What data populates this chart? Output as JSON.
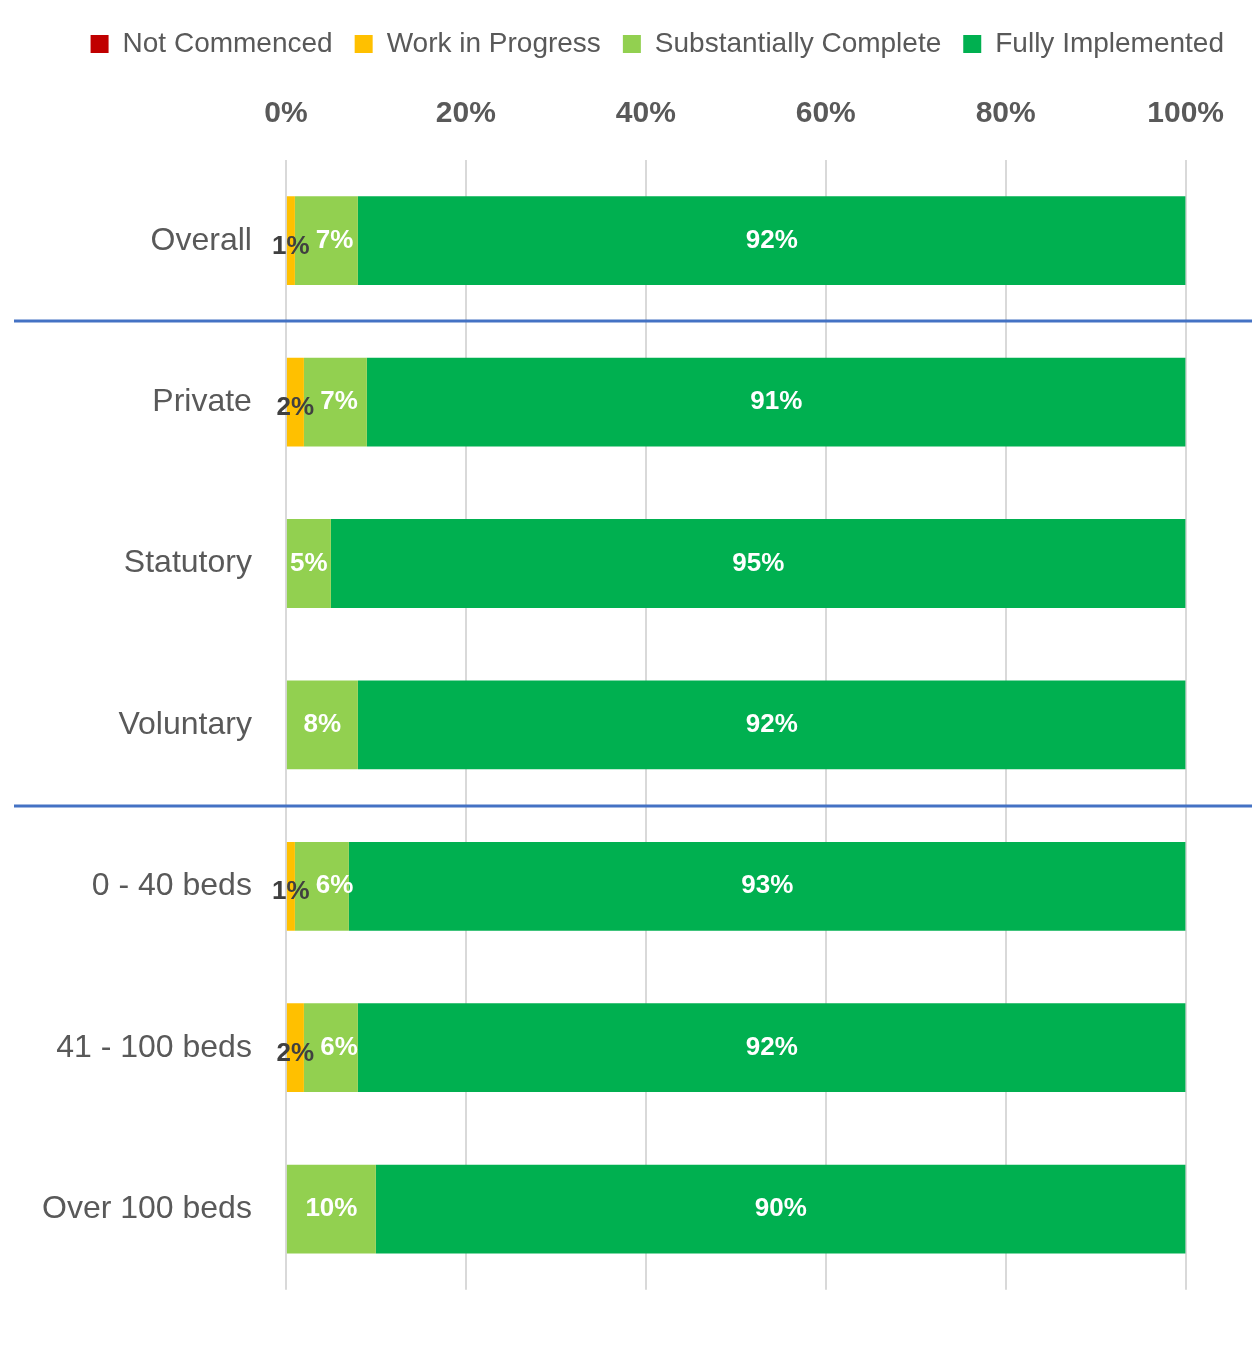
{
  "chart_data": {
    "type": "bar",
    "orientation": "horizontal",
    "stacked": true,
    "categories": [
      "Overall",
      "Private",
      "Statutory",
      "Voluntary",
      "0 - 40 beds",
      "41 - 100 beds",
      "Over 100 beds"
    ],
    "series": [
      {
        "name": "Not Commenced",
        "color": "#c00000",
        "values": [
          null,
          null,
          null,
          null,
          null,
          null,
          null
        ]
      },
      {
        "name": "Work in Progress",
        "color": "#ffc000",
        "values": [
          1,
          2,
          null,
          null,
          1,
          2,
          null
        ],
        "value_labels": [
          "1%",
          "2%",
          null,
          null,
          "1%",
          "2%",
          null
        ]
      },
      {
        "name": "Substantially Complete",
        "color": "#92d050",
        "values": [
          7,
          7,
          5,
          8,
          6,
          6,
          10
        ],
        "value_labels": [
          "7%",
          "7%",
          "5%",
          "8%",
          "6%",
          "6%",
          "10%"
        ]
      },
      {
        "name": "Fully Implemented",
        "color": "#00b050",
        "values": [
          92,
          91,
          95,
          92,
          93,
          92,
          90
        ],
        "value_labels": [
          "92%",
          "91%",
          "95%",
          "92%",
          "93%",
          "92%",
          "90%"
        ]
      }
    ],
    "xlim": [
      0,
      100
    ],
    "xticks": [
      {
        "value": 0,
        "label": "0%"
      },
      {
        "value": 20,
        "label": "20%"
      },
      {
        "value": 40,
        "label": "40%"
      },
      {
        "value": 60,
        "label": "60%"
      },
      {
        "value": 80,
        "label": "80%"
      },
      {
        "value": 100,
        "label": "100%"
      }
    ],
    "grid": "x",
    "legend": "top"
  }
}
